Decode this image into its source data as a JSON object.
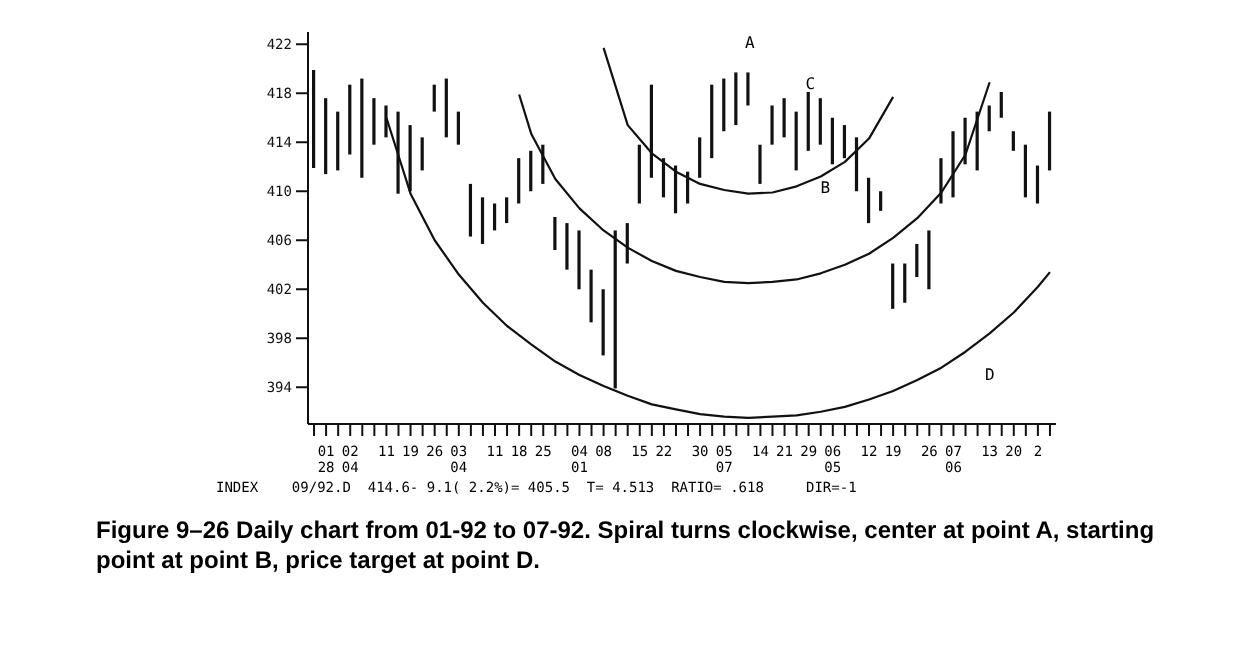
{
  "chart_data": {
    "type": "bar",
    "categories": [
      null,
      "01 28",
      null,
      "02 04",
      null,
      null,
      "11",
      null,
      "19",
      null,
      "26",
      null,
      "03 04",
      null,
      null,
      "11",
      null,
      "18",
      null,
      "25",
      null,
      null,
      "04 01",
      null,
      "08",
      null,
      null,
      "15",
      null,
      "22",
      null,
      null,
      "30",
      null,
      "05 07",
      null,
      null,
      "14",
      null,
      "21",
      null,
      "29",
      null,
      "06 05",
      null,
      null,
      "12",
      null,
      "19",
      null,
      null,
      "26",
      null,
      "07 06",
      null,
      null,
      "13",
      null,
      "20",
      null,
      "2",
      null
    ],
    "grid": false,
    "legend": false,
    "series": [
      {
        "color": "#111111",
        "base": [
          411.9,
          411.4,
          411.7,
          413.0,
          411.1,
          413.8,
          414.4,
          409.8,
          410.0,
          411.7,
          416.5,
          414.4,
          413.8,
          406.3,
          405.7,
          406.8,
          407.4,
          409.0,
          410.0,
          410.6,
          405.2,
          403.6,
          402.0,
          399.3,
          396.6,
          393.9,
          404.1,
          409.0,
          411.1,
          409.5,
          408.2,
          409.0,
          411.1,
          412.7,
          414.9,
          415.4,
          417.0,
          410.6,
          413.8,
          414.4,
          411.7,
          413.3,
          413.8,
          412.2,
          412.7,
          410.0,
          407.4,
          408.4,
          400.4,
          400.9,
          403.0,
          402.0,
          409.0,
          409.5,
          412.2,
          411.7,
          414.9,
          416.0,
          413.3,
          409.5,
          409.0,
          411.7
        ],
        "values": [
          8.0,
          6.2,
          4.8,
          5.7,
          8.1,
          3.8,
          2.6,
          6.7,
          5.4,
          2.7,
          2.2,
          4.8,
          2.7,
          4.3,
          3.8,
          2.2,
          2.1,
          3.7,
          3.3,
          3.2,
          2.7,
          3.8,
          4.8,
          4.3,
          5.4,
          12.9,
          3.3,
          4.8,
          7.6,
          3.2,
          3.9,
          2.6,
          3.3,
          6.0,
          4.3,
          4.3,
          2.7,
          3.2,
          3.2,
          3.2,
          4.8,
          4.8,
          3.8,
          3.8,
          2.7,
          4.4,
          3.7,
          1.6,
          3.7,
          3.2,
          2.7,
          4.8,
          3.7,
          5.4,
          3.8,
          4.8,
          2.1,
          2.1,
          1.6,
          4.3,
          3.1,
          4.8
        ]
      },
      {
        "type": "line",
        "color": "#111111",
        "values": [
          null,
          null,
          null,
          null,
          null,
          null,
          null,
          null,
          null,
          null,
          null,
          null,
          null,
          null,
          null,
          null,
          null,
          null,
          null,
          null,
          null,
          null,
          null,
          null,
          421.7,
          null,
          415.4,
          null,
          413.1,
          null,
          411.6,
          null,
          410.6,
          null,
          410.1,
          null,
          409.8,
          null,
          409.9,
          null,
          410.4,
          null,
          411.2,
          null,
          412.4,
          null,
          414.3,
          null,
          417.7,
          null,
          null,
          null,
          null,
          null,
          null,
          null,
          null,
          null,
          null,
          null,
          null,
          null
        ]
      },
      {
        "type": "line",
        "color": "#111111",
        "values": [
          null,
          null,
          null,
          null,
          null,
          null,
          null,
          null,
          null,
          null,
          null,
          null,
          null,
          null,
          null,
          null,
          null,
          417.9,
          414.7,
          null,
          411.0,
          null,
          408.6,
          null,
          406.8,
          null,
          405.4,
          null,
          404.3,
          null,
          403.5,
          null,
          403.0,
          null,
          402.6,
          null,
          402.5,
          null,
          402.6,
          null,
          402.8,
          null,
          403.3,
          null,
          404.0,
          null,
          404.9,
          null,
          406.2,
          null,
          407.8,
          null,
          409.9,
          null,
          413.0,
          null,
          418.9,
          null,
          null,
          null,
          null,
          null
        ]
      },
      {
        "type": "line",
        "color": "#111111",
        "values": [
          null,
          null,
          null,
          null,
          null,
          null,
          416.0,
          null,
          409.8,
          null,
          406.0,
          null,
          403.2,
          null,
          400.9,
          null,
          399.0,
          null,
          397.5,
          null,
          396.1,
          null,
          395.0,
          null,
          394.1,
          null,
          393.3,
          null,
          392.6,
          null,
          392.2,
          null,
          391.8,
          null,
          391.6,
          null,
          391.5,
          null,
          391.6,
          null,
          391.7,
          null,
          392.0,
          null,
          392.4,
          null,
          393.0,
          null,
          393.7,
          null,
          394.6,
          null,
          395.6,
          null,
          396.9,
          null,
          398.4,
          null,
          400.1,
          null,
          402.2,
          403.4
        ]
      }
    ],
    "marker": "none",
    "line_style": "solid",
    "ylim": [
      391,
      423
    ],
    "yticks": [
      394,
      398,
      402,
      406,
      410,
      414,
      418,
      422
    ],
    "annotations": [
      "A",
      "B",
      "C",
      "D",
      "INDEX    09/92.D  414.6- 9.1( 2.2%)= 405.5  T= 4.513  RATIO= .618     DIR=-1",
      "Figure 9–26  Daily chart from 01-92 to 07-92. Spiral turns clockwise, center at point A, starting point at point B, price target at point D."
    ]
  }
}
